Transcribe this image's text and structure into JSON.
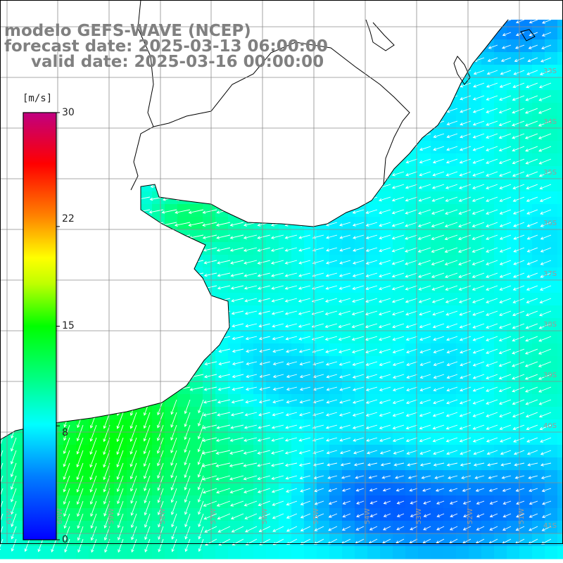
{
  "title": {
    "line1": "modelo GEFS-WAVE (NCEP)",
    "line2": "forecast date: 2025-03-13 06:00:00",
    "line3": "valid date: 2025-03-16 00:00:00"
  },
  "colorbar": {
    "unit": "[m/s]",
    "ticks": [
      "30",
      "22",
      "15",
      "8",
      "0"
    ],
    "tick_values": [
      30,
      22,
      15,
      8,
      0
    ],
    "range": [
      0,
      30
    ],
    "colors": [
      "#0000ff",
      "#00a0ff",
      "#00ffff",
      "#00ff00",
      "#ffff00",
      "#ff8000",
      "#ff0000",
      "#c00080"
    ]
  },
  "map": {
    "lon_labels": [
      "61W",
      "60W",
      "59W",
      "58W",
      "57W",
      "56W",
      "55W",
      "54W",
      "53W",
      "52W",
      "51W"
    ],
    "lat_labels": [
      "33S",
      "34S",
      "35S",
      "36S",
      "37S",
      "38S",
      "39S",
      "40S",
      "41S"
    ],
    "ocean_base_color": "#00e0ff",
    "land_color": "#ffffff",
    "coast_color": "#000000",
    "grid_color": "#8c8c8c",
    "arrow_color": "#ffffff"
  }
}
